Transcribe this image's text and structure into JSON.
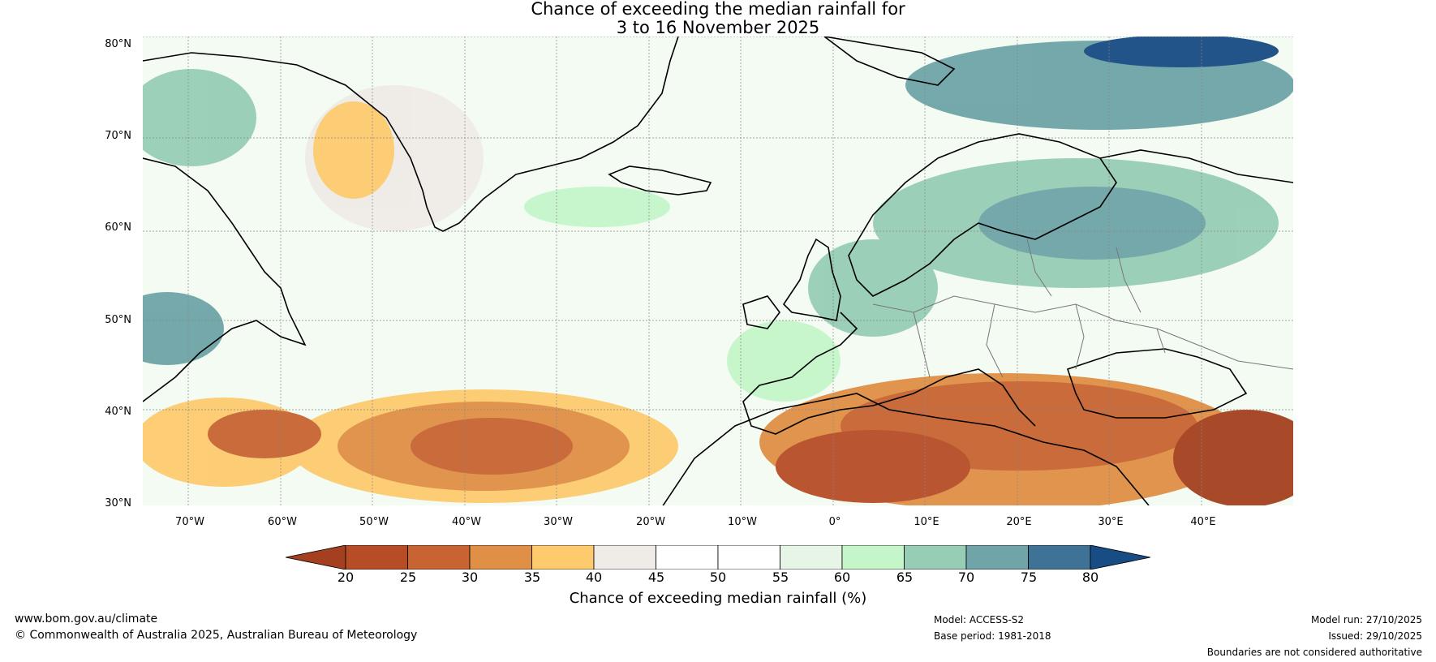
{
  "title": {
    "line1": "Chance of exceeding the median rainfall for",
    "line2": "3 to 16 November 2025"
  },
  "axes": {
    "lat_labels": [
      "80°N",
      "70°N",
      "60°N",
      "50°N",
      "40°N",
      "30°N"
    ],
    "lon_labels": [
      "70°W",
      "60°W",
      "50°W",
      "40°W",
      "30°W",
      "20°W",
      "10°W",
      "0°",
      "10°E",
      "20°E",
      "30°E",
      "40°E"
    ]
  },
  "colorbar": {
    "ticks": [
      "20",
      "25",
      "30",
      "35",
      "40",
      "45",
      "50",
      "55",
      "60",
      "65",
      "70",
      "75",
      "80"
    ],
    "colors": [
      "#a4401f",
      "#b64d26",
      "#c86432",
      "#e08f46",
      "#fdcb6e",
      "#efebe6",
      "#ffffff",
      "#ffffff",
      "#e6f5e6",
      "#c5f6c9",
      "#98cdb5",
      "#6fa4a8",
      "#3e7396",
      "#174c85"
    ],
    "label": "Chance of exceeding median rainfall (%)"
  },
  "footer": {
    "url": "www.bom.gov.au/climate",
    "copyright": "© Commonwealth of Australia 2025, Australian Bureau of Meteorology",
    "model": "Model: ACCESS-S2",
    "base_period": "Base period: 1981-2018",
    "model_run": "Model run: 27/10/2025",
    "issued": "Issued: 29/10/2025",
    "disclaimer": "Boundaries are not considered authoritative"
  }
}
